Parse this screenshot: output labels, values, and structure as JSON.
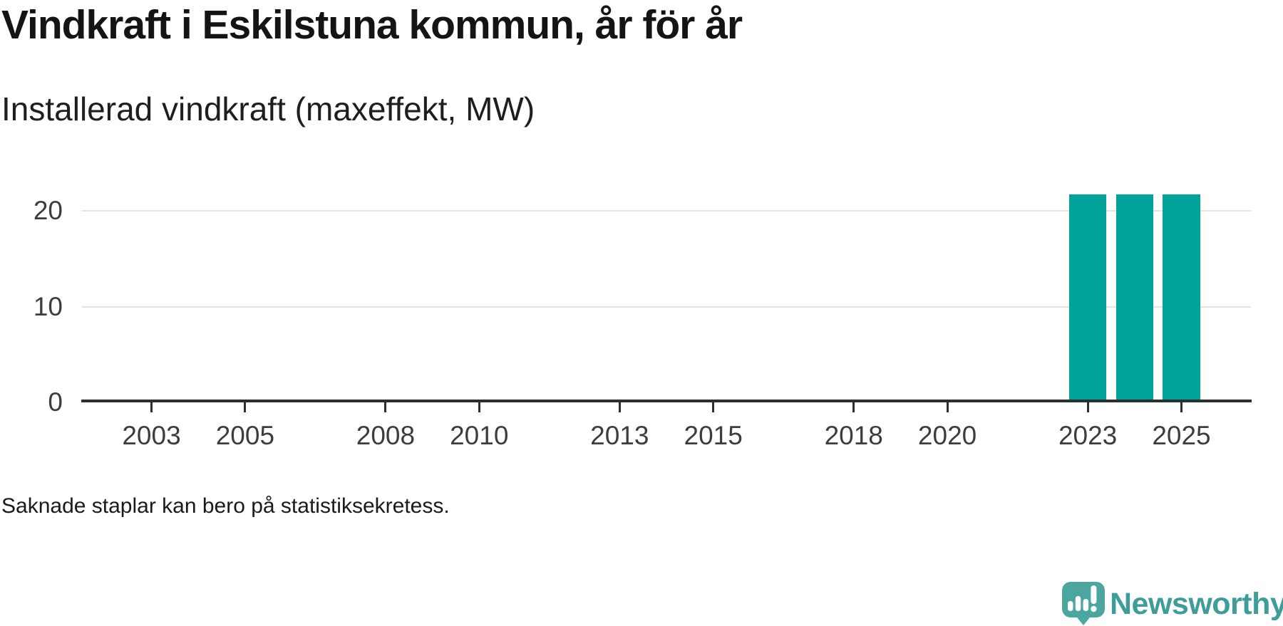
{
  "header": {
    "title": "Vindkraft i Eskilstuna kommun, år för år",
    "subtitle": "Installerad vindkraft (maxeffekt, MW)"
  },
  "footer": {
    "note": "Saknade staplar kan bero på statistiksekretess.",
    "brand": "Newsworthy"
  },
  "colors": {
    "bar": "#00a39a",
    "axis": "#2e2e2e",
    "gridline": "#e3e3e3",
    "tick_label": "#3d3d3d",
    "logo_bubble": "#4ca6a0",
    "wordmark": "#3f9d99"
  },
  "chart_data": {
    "type": "bar",
    "title": "Vindkraft i Eskilstuna kommun, år för år",
    "ylabel": "Installerad vindkraft (maxeffekt, MW)",
    "x_range": [
      2001.5,
      2026.5
    ],
    "ylim": [
      0,
      25
    ],
    "xticks": [
      2003,
      2005,
      2008,
      2010,
      2013,
      2015,
      2018,
      2020,
      2023,
      2025
    ],
    "yticks": [
      0,
      10,
      20
    ],
    "bar_width_years": 0.8,
    "grid": "horizontal",
    "legend": "none",
    "series": [
      {
        "name": "Installerad vindkraft (maxeffekt, MW)",
        "points": [
          {
            "x": 2023,
            "y": 21.7
          },
          {
            "x": 2024,
            "y": 21.7
          },
          {
            "x": 2025,
            "y": 21.7
          }
        ]
      }
    ]
  }
}
